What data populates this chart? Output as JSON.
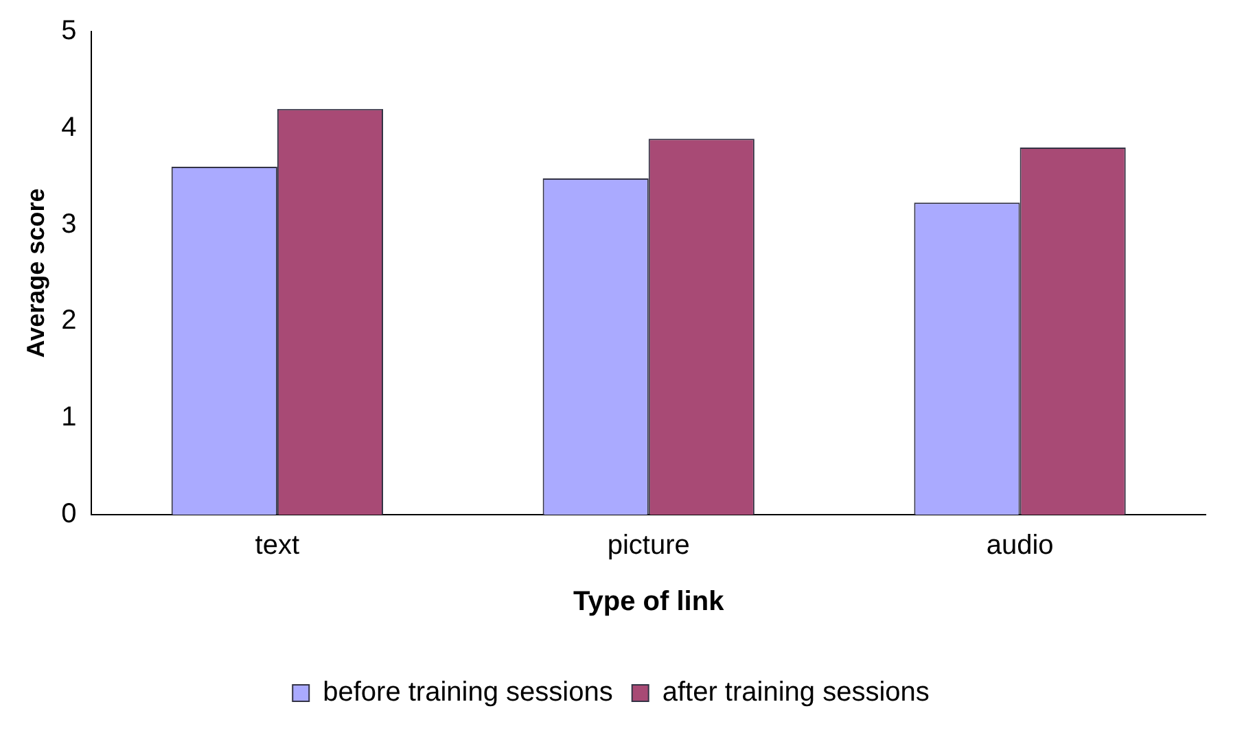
{
  "chart_data": {
    "type": "bar",
    "xlabel": "Type of link",
    "ylabel": "Average score",
    "categories": [
      "text",
      "picture",
      "audio"
    ],
    "series": [
      {
        "name": "before training sessions",
        "color": "#aaaaff",
        "values": [
          3.6,
          3.48,
          3.23
        ]
      },
      {
        "name": "after training sessions",
        "color": "#a84a75",
        "values": [
          4.2,
          3.89,
          3.8
        ]
      }
    ],
    "ylim": [
      0,
      5
    ],
    "yticks": [
      0,
      1,
      2,
      3,
      4,
      5
    ],
    "grid": false,
    "legend": "bottom"
  }
}
